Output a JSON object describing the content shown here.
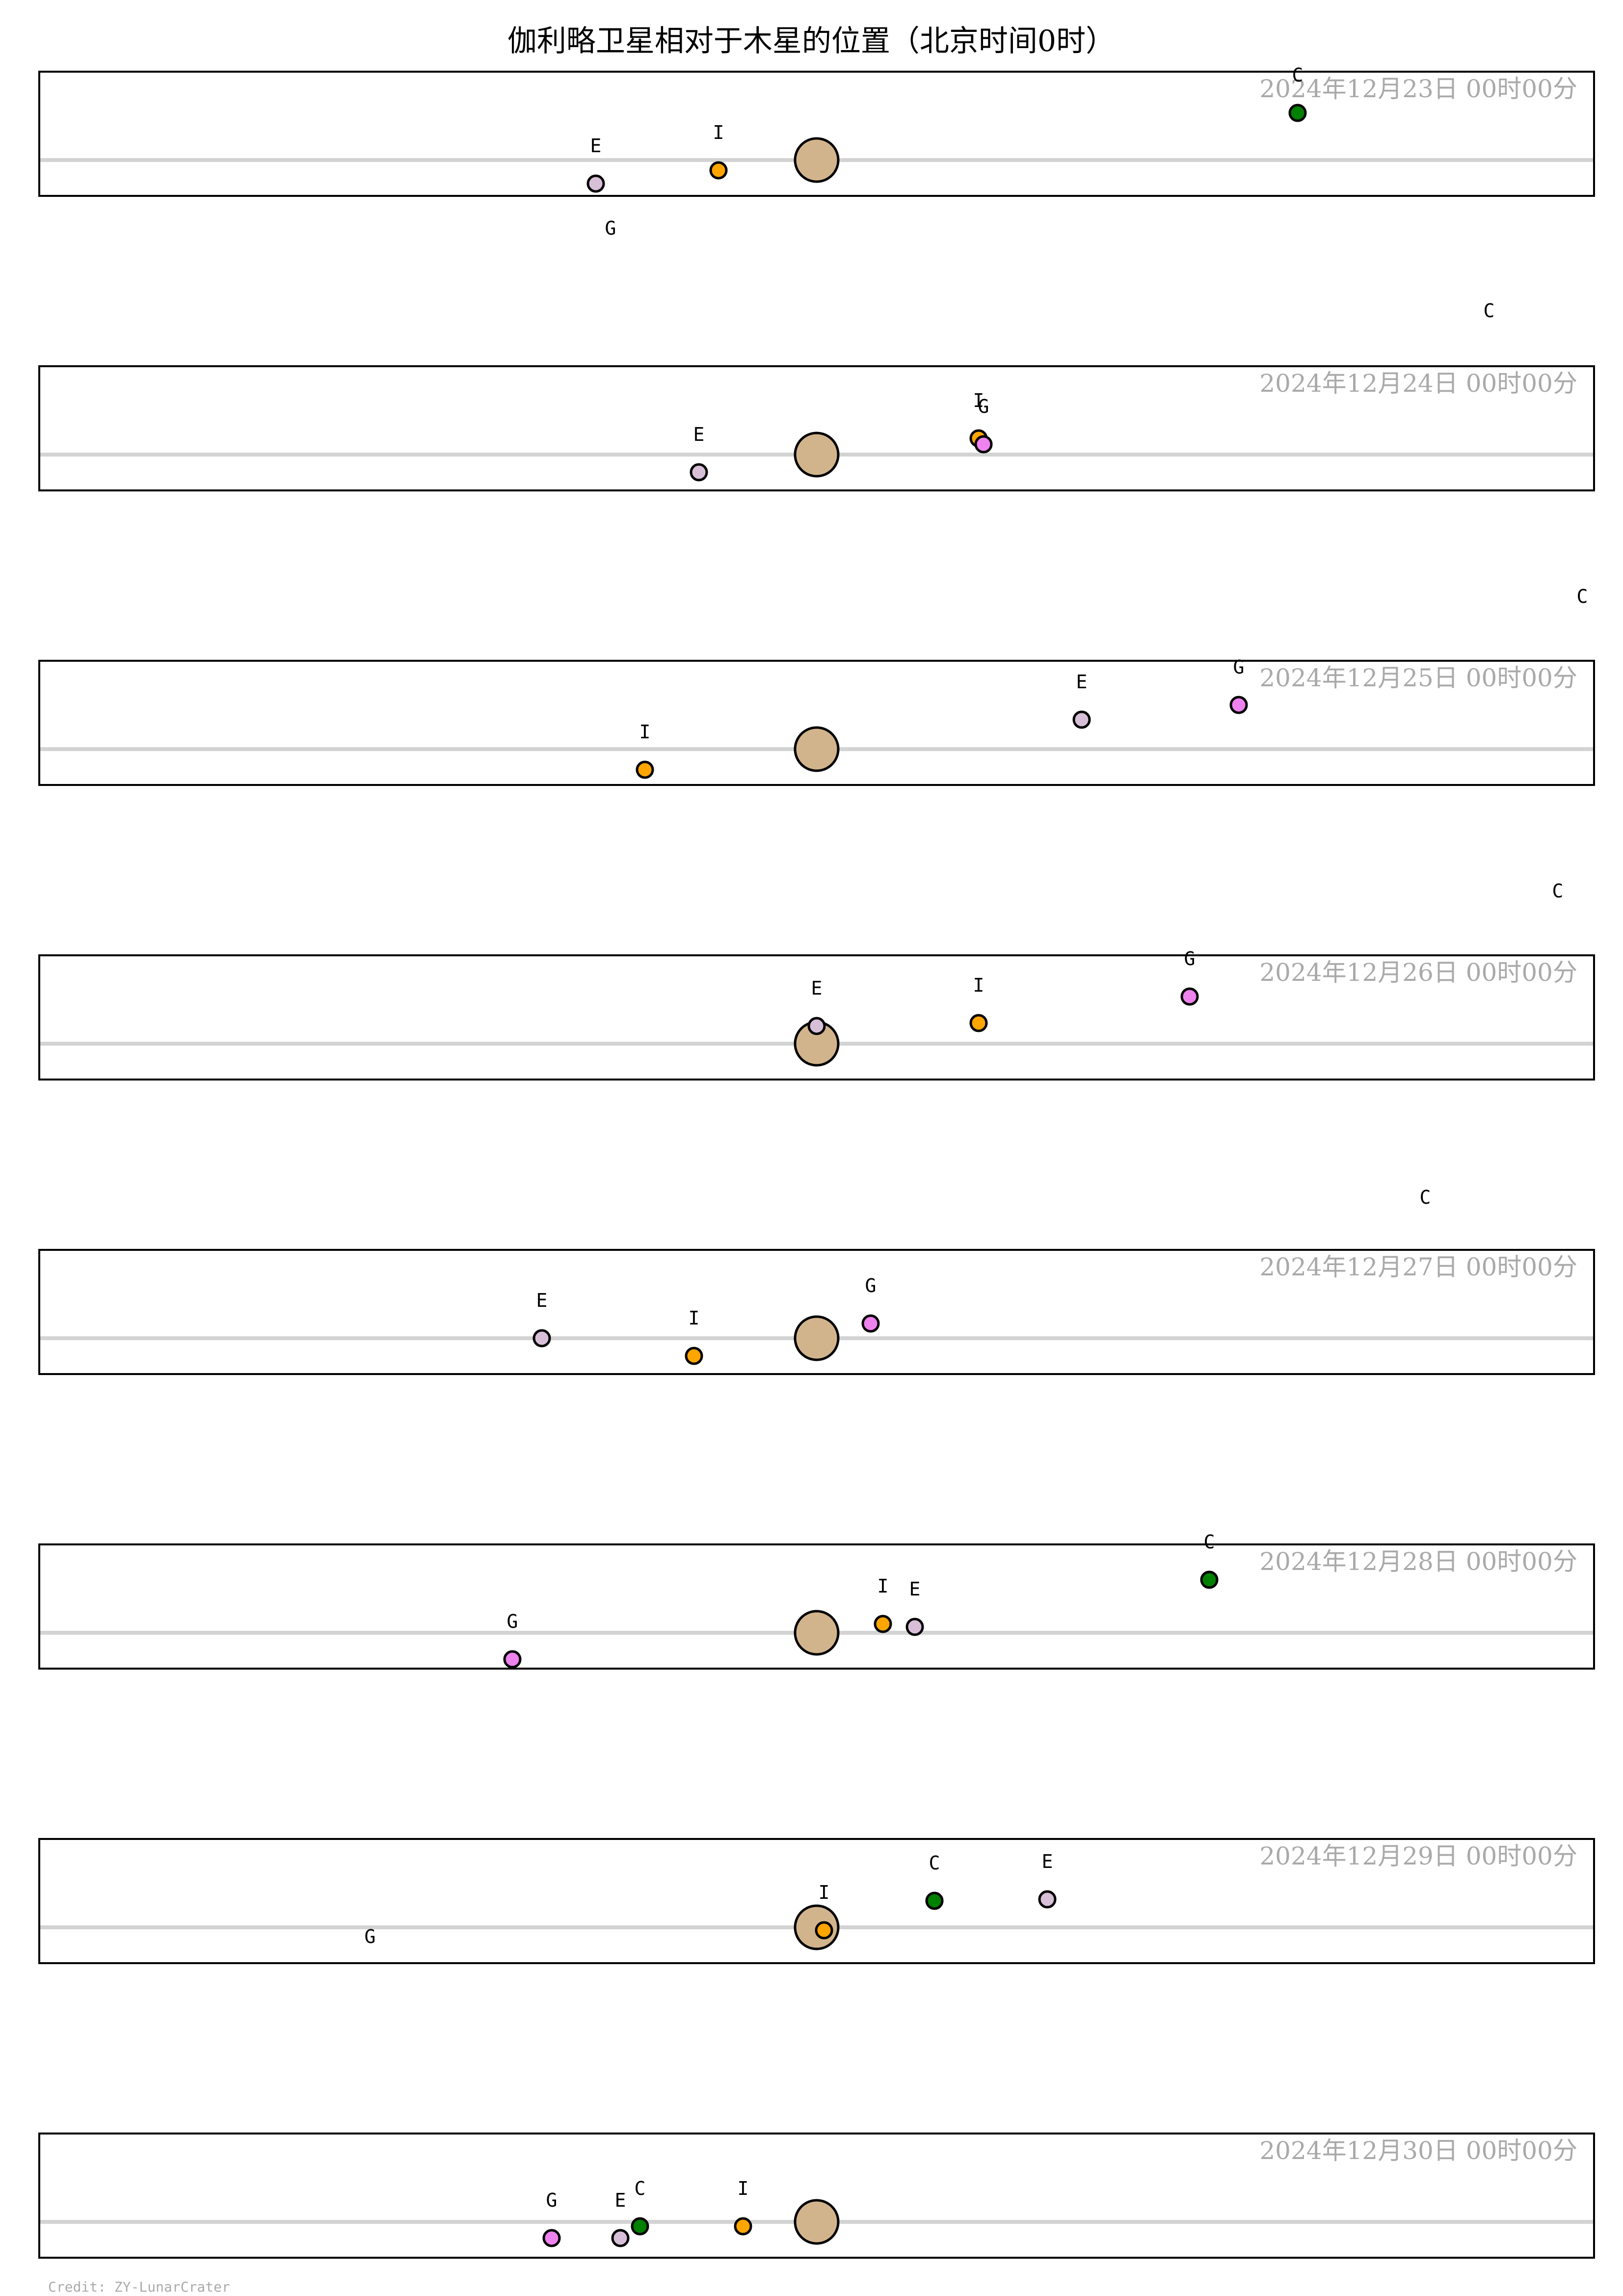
{
  "chart_data": {
    "type": "scatter",
    "title": "伽利略卫星相对于木星的位置（北京时间0时）",
    "credit": "Credit: ZY-LunarCrater",
    "jupiter_color": "#d2b48c",
    "grid": false,
    "moons": {
      "I": {
        "color": "#ffa500"
      },
      "E": {
        "color": "#d8bfd8"
      },
      "G": {
        "color": "#ee82ee"
      },
      "C": {
        "color": "#008000"
      }
    },
    "panels": [
      {
        "date": "2024年12月23日  00时00分",
        "moons": [
          {
            "name": "I",
            "x": -2.0,
            "y": -0.35
          },
          {
            "name": "E",
            "x": -4.5,
            "y": -0.8
          },
          {
            "name": "G",
            "x": -4.2,
            "y": -3.6
          },
          {
            "name": "C",
            "x": 9.8,
            "y": 1.6
          }
        ]
      },
      {
        "date": "2024年12月24日  00时00分",
        "moons": [
          {
            "name": "I",
            "x": 3.3,
            "y": 0.55
          },
          {
            "name": "G",
            "x": 3.4,
            "y": 0.35
          },
          {
            "name": "E",
            "x": -2.4,
            "y": -0.6
          },
          {
            "name": "C",
            "x": 13.7,
            "y": 3.6
          }
        ]
      },
      {
        "date": "2024年12月25日  00时00分",
        "moons": [
          {
            "name": "I",
            "x": -3.5,
            "y": -0.7
          },
          {
            "name": "E",
            "x": 5.4,
            "y": 1.0
          },
          {
            "name": "G",
            "x": 8.6,
            "y": 1.5
          },
          {
            "name": "C",
            "x": 15.6,
            "y": 3.9
          }
        ]
      },
      {
        "date": "2024年12月26日  00时00分",
        "moons": [
          {
            "name": "E",
            "x": 0.0,
            "y": 0.6
          },
          {
            "name": "I",
            "x": 3.3,
            "y": 0.7
          },
          {
            "name": "G",
            "x": 7.6,
            "y": 1.6
          },
          {
            "name": "C",
            "x": 15.1,
            "y": 3.9
          }
        ]
      },
      {
        "date": "2024年12月27日  00时00分",
        "moons": [
          {
            "name": "I",
            "x": -2.5,
            "y": -0.6
          },
          {
            "name": "E",
            "x": -5.6,
            "y": 0.0
          },
          {
            "name": "G",
            "x": 1.1,
            "y": 0.5
          },
          {
            "name": "C",
            "x": 12.4,
            "y": 3.5
          }
        ]
      },
      {
        "date": "2024年12月28日  00时00分",
        "moons": [
          {
            "name": "I",
            "x": 1.35,
            "y": 0.3
          },
          {
            "name": "E",
            "x": 2.0,
            "y": 0.2
          },
          {
            "name": "G",
            "x": -6.2,
            "y": -0.9
          },
          {
            "name": "C",
            "x": 8.0,
            "y": 1.8
          }
        ]
      },
      {
        "date": "2024年12月29日  00时00分",
        "moons": [
          {
            "name": "I",
            "x": 0.15,
            "y": -0.1
          },
          {
            "name": "C",
            "x": 2.4,
            "y": 0.9
          },
          {
            "name": "E",
            "x": 4.7,
            "y": 0.95
          },
          {
            "name": "G",
            "x": -9.1,
            "y": -1.6
          }
        ]
      },
      {
        "date": "2024年12月30日  00时00分",
        "moons": [
          {
            "name": "I",
            "x": -1.5,
            "y": -0.15
          },
          {
            "name": "C",
            "x": -3.6,
            "y": -0.15
          },
          {
            "name": "E",
            "x": -4.0,
            "y": -0.55
          },
          {
            "name": "G",
            "x": -5.4,
            "y": -0.55
          }
        ]
      }
    ]
  }
}
